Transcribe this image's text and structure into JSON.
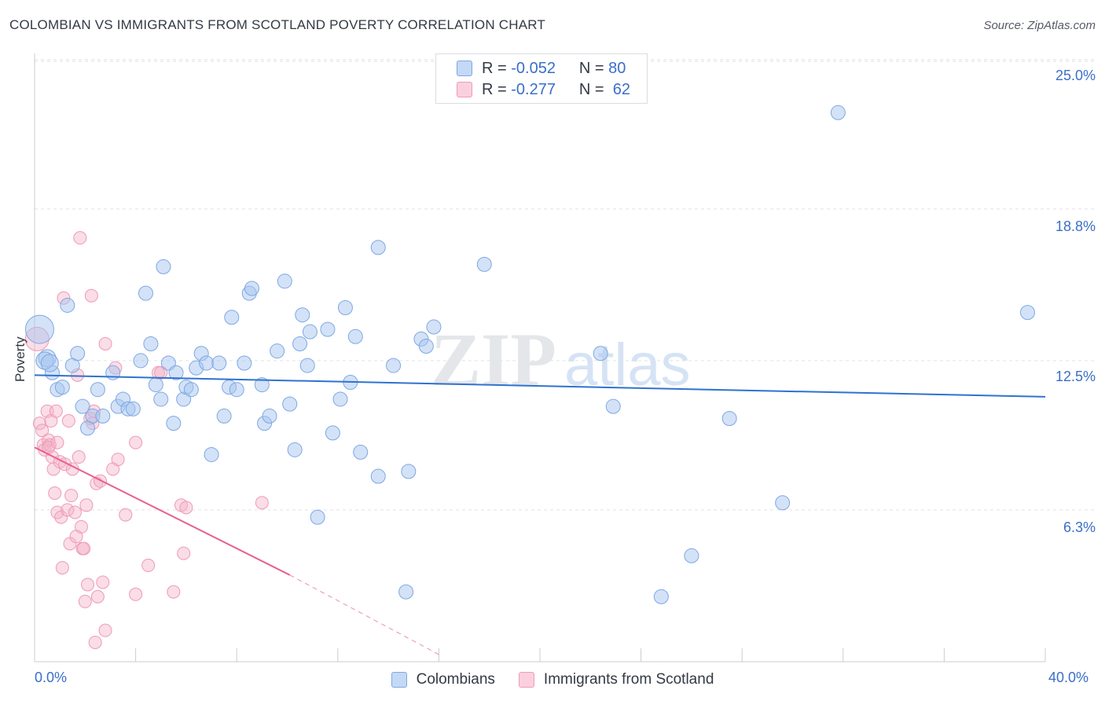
{
  "title": "COLOMBIAN VS IMMIGRANTS FROM SCOTLAND POVERTY CORRELATION CHART",
  "source": "Source: ZipAtlas.com",
  "watermark": {
    "zip": "ZIP",
    "atlas": "atlas"
  },
  "legend": {
    "r_label": "R =",
    "n_label": "N =",
    "series": [
      {
        "r": "-0.052",
        "n": "80"
      },
      {
        "r": "-0.277",
        "n": "62"
      }
    ]
  },
  "chart_data": {
    "type": "scatter",
    "title": "COLOMBIAN VS IMMIGRANTS FROM SCOTLAND POVERTY CORRELATION CHART",
    "xlabel": "",
    "ylabel": "Poverty",
    "xlim": [
      0,
      40
    ],
    "ylim": [
      0,
      25.9
    ],
    "x_tick_labels": [
      "0.0%",
      "40.0%"
    ],
    "y_ticks": [
      6.3,
      12.5,
      18.8,
      25.0
    ],
    "y_tick_labels": [
      "6.3%",
      "12.5%",
      "18.8%",
      "25.0%"
    ],
    "colors": {
      "colombians": "#a8c6f0",
      "colombians_line": "#2f72d0",
      "scotland": "#f4b3c8",
      "scotland_line": "#e8608e",
      "axis_text": "#3a6fc8"
    },
    "series": [
      {
        "name": "Colombians",
        "trend": {
          "x": [
            0,
            40
          ],
          "y": [
            11.9,
            11.0
          ]
        },
        "points": [
          [
            0.2,
            13.8
          ],
          [
            0.5,
            12.6
          ],
          [
            0.7,
            12.0
          ],
          [
            0.9,
            11.3
          ],
          [
            1.1,
            11.4
          ],
          [
            1.3,
            14.8
          ],
          [
            1.5,
            12.3
          ],
          [
            1.7,
            12.8
          ],
          [
            1.9,
            10.6
          ],
          [
            2.1,
            9.7
          ],
          [
            2.3,
            10.2
          ],
          [
            2.5,
            11.3
          ],
          [
            2.7,
            10.2
          ],
          [
            3.1,
            12.0
          ],
          [
            3.3,
            10.6
          ],
          [
            3.5,
            10.9
          ],
          [
            3.7,
            10.5
          ],
          [
            3.9,
            10.5
          ],
          [
            4.2,
            12.5
          ],
          [
            4.4,
            15.3
          ],
          [
            4.6,
            13.2
          ],
          [
            4.8,
            11.5
          ],
          [
            5.0,
            10.9
          ],
          [
            5.1,
            16.4
          ],
          [
            5.3,
            12.4
          ],
          [
            5.5,
            9.9
          ],
          [
            5.6,
            12.0
          ],
          [
            5.9,
            10.9
          ],
          [
            6.0,
            11.4
          ],
          [
            6.2,
            11.3
          ],
          [
            6.4,
            12.2
          ],
          [
            6.6,
            12.8
          ],
          [
            6.8,
            12.4
          ],
          [
            7.0,
            8.6
          ],
          [
            7.3,
            12.4
          ],
          [
            7.5,
            10.2
          ],
          [
            7.7,
            11.4
          ],
          [
            7.8,
            14.3
          ],
          [
            8.0,
            11.3
          ],
          [
            8.3,
            12.4
          ],
          [
            8.5,
            15.3
          ],
          [
            8.6,
            15.5
          ],
          [
            9.0,
            11.5
          ],
          [
            9.1,
            9.9
          ],
          [
            9.3,
            10.2
          ],
          [
            9.6,
            12.9
          ],
          [
            9.9,
            15.8
          ],
          [
            10.1,
            10.7
          ],
          [
            10.3,
            8.8
          ],
          [
            10.5,
            13.2
          ],
          [
            10.6,
            14.4
          ],
          [
            10.8,
            12.3
          ],
          [
            10.9,
            13.7
          ],
          [
            11.2,
            6.0
          ],
          [
            11.6,
            13.8
          ],
          [
            11.8,
            9.5
          ],
          [
            12.1,
            10.9
          ],
          [
            12.3,
            14.7
          ],
          [
            12.5,
            11.6
          ],
          [
            12.7,
            13.5
          ],
          [
            12.9,
            8.7
          ],
          [
            13.6,
            17.2
          ],
          [
            13.6,
            7.7
          ],
          [
            14.2,
            12.3
          ],
          [
            14.7,
            2.9
          ],
          [
            14.8,
            7.9
          ],
          [
            15.3,
            13.4
          ],
          [
            15.5,
            13.1
          ],
          [
            15.8,
            13.9
          ],
          [
            17.8,
            16.5
          ],
          [
            22.4,
            12.8
          ],
          [
            22.9,
            10.6
          ],
          [
            24.8,
            2.7
          ],
          [
            26.0,
            4.4
          ],
          [
            27.5,
            10.1
          ],
          [
            29.6,
            6.6
          ],
          [
            31.8,
            22.8
          ],
          [
            39.3,
            14.5
          ],
          [
            0.4,
            12.5
          ],
          [
            0.6,
            12.4
          ]
        ]
      },
      {
        "name": "Immigrants from Scotland",
        "trend": {
          "x": [
            0,
            10.1
          ],
          "y": [
            8.9,
            3.6
          ]
        },
        "trend_dashed": {
          "x": [
            10.1,
            16.0
          ],
          "y": [
            3.6,
            0.3
          ]
        },
        "points": [
          [
            0.1,
            13.4
          ],
          [
            0.2,
            9.9
          ],
          [
            0.3,
            9.6
          ],
          [
            0.35,
            9.0
          ],
          [
            0.4,
            8.8
          ],
          [
            0.5,
            10.4
          ],
          [
            0.55,
            9.2
          ],
          [
            0.6,
            9.0
          ],
          [
            0.65,
            10.0
          ],
          [
            0.7,
            8.5
          ],
          [
            0.75,
            8.0
          ],
          [
            0.8,
            7.0
          ],
          [
            0.85,
            10.4
          ],
          [
            0.9,
            6.2
          ],
          [
            1.0,
            8.3
          ],
          [
            1.05,
            6.0
          ],
          [
            1.1,
            3.9
          ],
          [
            1.15,
            15.1
          ],
          [
            1.2,
            8.2
          ],
          [
            1.3,
            6.3
          ],
          [
            1.35,
            10.0
          ],
          [
            1.4,
            4.9
          ],
          [
            1.45,
            6.9
          ],
          [
            1.5,
            8.0
          ],
          [
            1.6,
            6.2
          ],
          [
            1.65,
            5.2
          ],
          [
            1.7,
            11.9
          ],
          [
            1.75,
            8.5
          ],
          [
            1.8,
            17.6
          ],
          [
            1.85,
            5.6
          ],
          [
            1.9,
            4.7
          ],
          [
            1.95,
            4.7
          ],
          [
            2.0,
            2.5
          ],
          [
            2.05,
            6.5
          ],
          [
            2.1,
            3.2
          ],
          [
            2.2,
            10.1
          ],
          [
            2.25,
            15.2
          ],
          [
            2.3,
            9.9
          ],
          [
            2.35,
            10.4
          ],
          [
            2.4,
            0.8
          ],
          [
            2.45,
            7.4
          ],
          [
            2.5,
            2.7
          ],
          [
            2.6,
            7.5
          ],
          [
            2.7,
            3.3
          ],
          [
            2.8,
            1.3
          ],
          [
            2.8,
            13.2
          ],
          [
            3.1,
            8.0
          ],
          [
            3.2,
            12.2
          ],
          [
            3.3,
            8.4
          ],
          [
            3.6,
            6.1
          ],
          [
            4.0,
            9.1
          ],
          [
            4.0,
            2.8
          ],
          [
            4.5,
            4.0
          ],
          [
            4.9,
            12.0
          ],
          [
            5.0,
            12.0
          ],
          [
            5.5,
            2.9
          ],
          [
            5.8,
            6.5
          ],
          [
            5.9,
            4.5
          ],
          [
            6.0,
            6.4
          ],
          [
            9.0,
            6.6
          ],
          [
            0.55,
            8.9
          ],
          [
            0.9,
            9.1
          ]
        ]
      }
    ]
  },
  "bottom_legend": [
    "Colombians",
    "Immigrants from Scotland"
  ]
}
